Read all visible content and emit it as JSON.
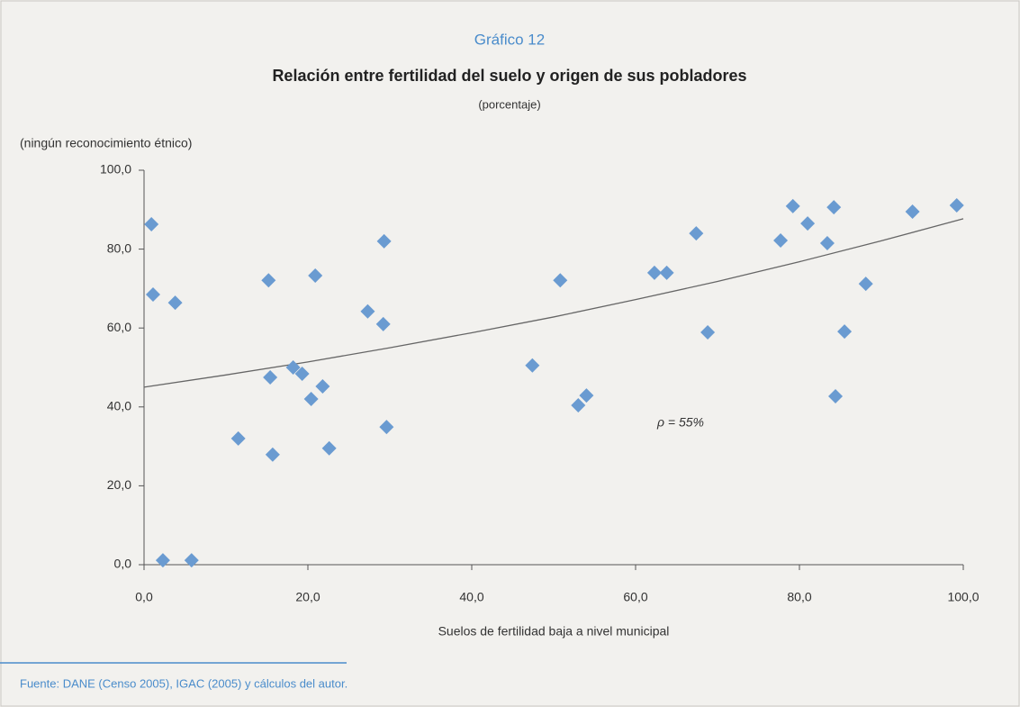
{
  "chart_data": {
    "type": "scatter",
    "chart_number": "Gráfico 12",
    "title": "Relación entre fertilidad del suelo y origen de sus pobladores",
    "subtitle": "(porcentaje)",
    "y_label": "(ningún reconocimiento étnico)",
    "x_label": "Suelos de fertilidad baja a nivel municipal",
    "annotation": "ρ = 55%",
    "source": "Fuente: DANE (Censo 2005), IGAC (2005) y cálculos del autor.",
    "color": "#6a9bd1",
    "trend_color": "#666666",
    "xlim": [
      0,
      100
    ],
    "ylim": [
      0,
      100
    ],
    "xticks": [
      {
        "value": 0,
        "label": "0,0"
      },
      {
        "value": 20,
        "label": "20,0"
      },
      {
        "value": 40,
        "label": "40,0"
      },
      {
        "value": 60,
        "label": "60,0"
      },
      {
        "value": 80,
        "label": "80,0"
      },
      {
        "value": 100,
        "label": "100,0"
      }
    ],
    "yticks": [
      {
        "value": 0,
        "label": "0,0"
      },
      {
        "value": 20,
        "label": "20,0"
      },
      {
        "value": 40,
        "label": "40,0"
      },
      {
        "value": 60,
        "label": "60,0"
      },
      {
        "value": 80,
        "label": "80,0"
      },
      {
        "value": 100,
        "label": "100,0"
      }
    ],
    "x": [
      0.9,
      1.1,
      3.8,
      2.3,
      5.8,
      11.5,
      15.2,
      15.4,
      15.7,
      18.2,
      19.3,
      20.4,
      20.9,
      21.8,
      22.6,
      27.3,
      29.3,
      29.2,
      29.6,
      47.4,
      50.8,
      53.0,
      54.0,
      62.3,
      63.8,
      67.4,
      68.8,
      77.7,
      79.2,
      81.0,
      83.4,
      84.2,
      84.4,
      85.5,
      88.1,
      93.8,
      99.2
    ],
    "values": [
      86.3,
      68.5,
      66.4,
      1.1,
      1.1,
      32.0,
      72.1,
      47.5,
      27.9,
      50.0,
      48.4,
      42.0,
      73.3,
      45.2,
      29.5,
      64.2,
      82.0,
      61.0,
      34.9,
      50.5,
      72.1,
      40.4,
      42.9,
      74.0,
      74.0,
      84.0,
      58.9,
      82.2,
      90.9,
      86.5,
      81.5,
      90.6,
      42.7,
      59.1,
      71.2,
      89.5,
      91.1
    ],
    "trend": {
      "x": [
        0,
        10,
        20,
        30,
        40,
        50,
        60,
        70,
        80,
        90,
        100
      ],
      "values": [
        45.0,
        48.1,
        51.4,
        55.0,
        58.8,
        62.8,
        67.2,
        71.8,
        76.8,
        82.1,
        87.7
      ]
    }
  }
}
